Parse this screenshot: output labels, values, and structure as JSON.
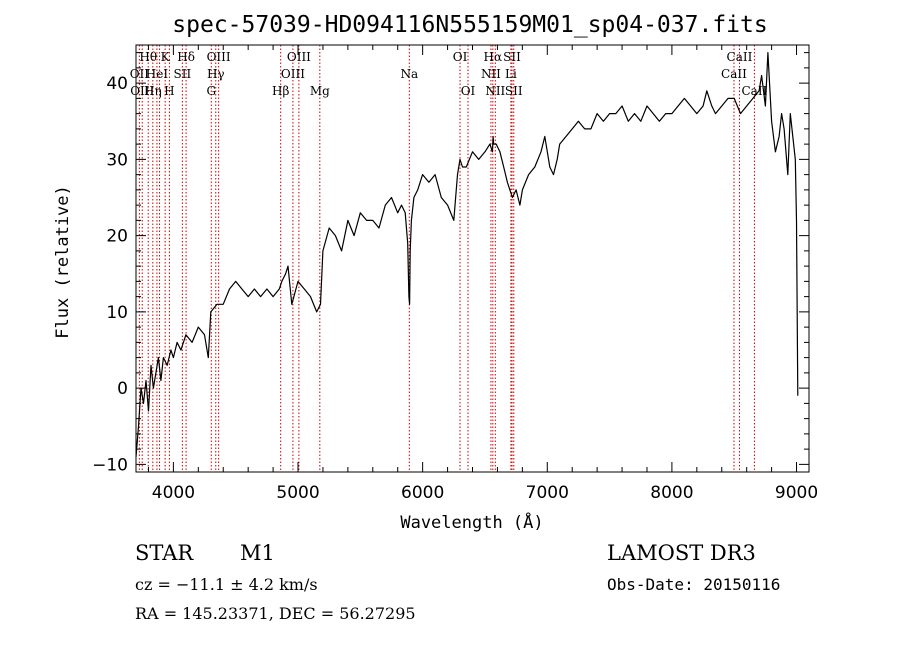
{
  "chart_data": {
    "type": "line",
    "title": "spec-57039-HD094116N555159M01_sp04-037.fits",
    "xlabel": "Wavelength (Å)",
    "ylabel": "Flux (relative)",
    "xlim": [
      3700,
      9100
    ],
    "ylim": [
      -11,
      45
    ],
    "x_ticks": [
      4000,
      5000,
      6000,
      7000,
      8000,
      9000
    ],
    "y_ticks": [
      -10,
      0,
      10,
      20,
      30,
      40
    ],
    "grid": false,
    "line_color": "#000000",
    "marker_color": "#cc0000",
    "series": [
      {
        "x": [
          3700,
          3720,
          3740,
          3760,
          3780,
          3800,
          3820,
          3840,
          3860,
          3880,
          3900,
          3920,
          3950,
          3980,
          4000,
          4030,
          4060,
          4100,
          4150,
          4200,
          4250,
          4280,
          4300,
          4350,
          4400,
          4450,
          4500,
          4550,
          4600,
          4650,
          4700,
          4750,
          4800,
          4850,
          4870,
          4900,
          4920,
          4950,
          5000,
          5050,
          5100,
          5150,
          5180,
          5200,
          5250,
          5300,
          5350,
          5400,
          5450,
          5500,
          5550,
          5600,
          5650,
          5700,
          5750,
          5800,
          5830,
          5860,
          5880,
          5890,
          5895,
          5900,
          5910,
          5930,
          5960,
          6000,
          6050,
          6100,
          6150,
          6200,
          6250,
          6280,
          6300,
          6320,
          6350,
          6400,
          6450,
          6500,
          6540,
          6560,
          6565,
          6570,
          6590,
          6620,
          6650,
          6680,
          6700,
          6720,
          6750,
          6780,
          6800,
          6850,
          6900,
          6950,
          6980,
          7000,
          7020,
          7050,
          7080,
          7100,
          7150,
          7200,
          7250,
          7300,
          7350,
          7400,
          7450,
          7500,
          7550,
          7600,
          7650,
          7700,
          7750,
          7800,
          7850,
          7900,
          7950,
          8000,
          8050,
          8100,
          8150,
          8200,
          8250,
          8280,
          8300,
          8320,
          8350,
          8400,
          8450,
          8500,
          8550,
          8600,
          8650,
          8700,
          8720,
          8750,
          8770,
          8800,
          8830,
          8860,
          8880,
          8900,
          8930,
          8950,
          8970,
          8990,
          9000,
          9010
        ],
        "y": [
          -9,
          -5,
          0,
          -2,
          1,
          -3,
          3,
          0,
          2,
          4,
          1,
          4,
          3,
          5,
          4,
          6,
          5,
          7,
          6,
          8,
          7,
          4,
          10,
          11,
          11,
          13,
          14,
          13,
          12,
          13,
          12,
          13,
          12,
          13,
          14,
          15,
          16,
          11,
          14,
          13,
          12,
          10,
          11,
          18,
          21,
          20,
          18,
          22,
          20,
          23,
          22,
          22,
          21,
          24,
          25,
          23,
          24,
          23,
          19,
          12,
          11,
          18,
          22,
          25,
          26,
          28,
          27,
          28,
          25,
          24,
          22,
          28,
          30,
          29,
          29,
          31,
          30,
          31,
          32,
          31,
          33,
          32,
          32,
          31,
          29,
          27,
          26,
          25,
          26,
          24,
          26,
          28,
          29,
          31,
          33,
          31,
          29,
          28,
          30,
          32,
          33,
          34,
          35,
          34,
          34,
          36,
          35,
          36,
          36,
          37,
          35,
          36,
          35,
          37,
          36,
          35,
          36,
          36,
          37,
          38,
          37,
          36,
          37,
          39,
          38,
          37,
          36,
          37,
          38,
          38,
          36,
          37,
          38,
          39,
          41,
          37,
          44,
          35,
          31,
          33,
          36,
          34,
          28,
          36,
          33,
          30,
          22,
          -1
        ]
      }
    ],
    "markers": [
      {
        "x": 3727,
        "label": "OII",
        "row": 2
      },
      {
        "x": 3750,
        "label": "OIII",
        "row": 3
      },
      {
        "x": 3798,
        "label": "Hθ",
        "row": 1
      },
      {
        "x": 3835,
        "label": "Hη",
        "row": 3
      },
      {
        "x": 3868,
        "label": "HeI",
        "row": 2
      },
      {
        "x": 3889,
        "label": "",
        "row": 0
      },
      {
        "x": 3934,
        "label": "K",
        "row": 1
      },
      {
        "x": 3968,
        "label": "H",
        "row": 3
      },
      {
        "x": 4072,
        "label": "SII",
        "row": 2
      },
      {
        "x": 4102,
        "label": "Hδ",
        "row": 1
      },
      {
        "x": 4304,
        "label": "G",
        "row": 3
      },
      {
        "x": 4340,
        "label": "Hγ",
        "row": 2
      },
      {
        "x": 4363,
        "label": "OIII",
        "row": 1
      },
      {
        "x": 4861,
        "label": "Hβ",
        "row": 3
      },
      {
        "x": 4959,
        "label": "OIII",
        "row": 2
      },
      {
        "x": 5007,
        "label": "OIII",
        "row": 1
      },
      {
        "x": 5175,
        "label": "Mg",
        "row": 3
      },
      {
        "x": 5893,
        "label": "Na",
        "row": 2
      },
      {
        "x": 6300,
        "label": "OI",
        "row": 1
      },
      {
        "x": 6364,
        "label": "OI",
        "row": 3
      },
      {
        "x": 6548,
        "label": "NII",
        "row": 2
      },
      {
        "x": 6563,
        "label": "Hα",
        "row": 1
      },
      {
        "x": 6583,
        "label": "NII",
        "row": 3
      },
      {
        "x": 6708,
        "label": "Li",
        "row": 2
      },
      {
        "x": 6717,
        "label": "SII",
        "row": 1
      },
      {
        "x": 6731,
        "label": "SII",
        "row": 3
      },
      {
        "x": 8498,
        "label": "CaII",
        "row": 2
      },
      {
        "x": 8542,
        "label": "CaII",
        "row": 1
      },
      {
        "x": 8662,
        "label": "CaII",
        "row": 3
      }
    ]
  },
  "info": {
    "object_class": "STAR",
    "subclass": "M1",
    "survey": "LAMOST DR3",
    "redshift": "cz = −11.1 ± 4.2 km/s",
    "obs_date": "Obs-Date: 20150116",
    "coords": "RA = 145.23371, DEC =  56.27295"
  }
}
